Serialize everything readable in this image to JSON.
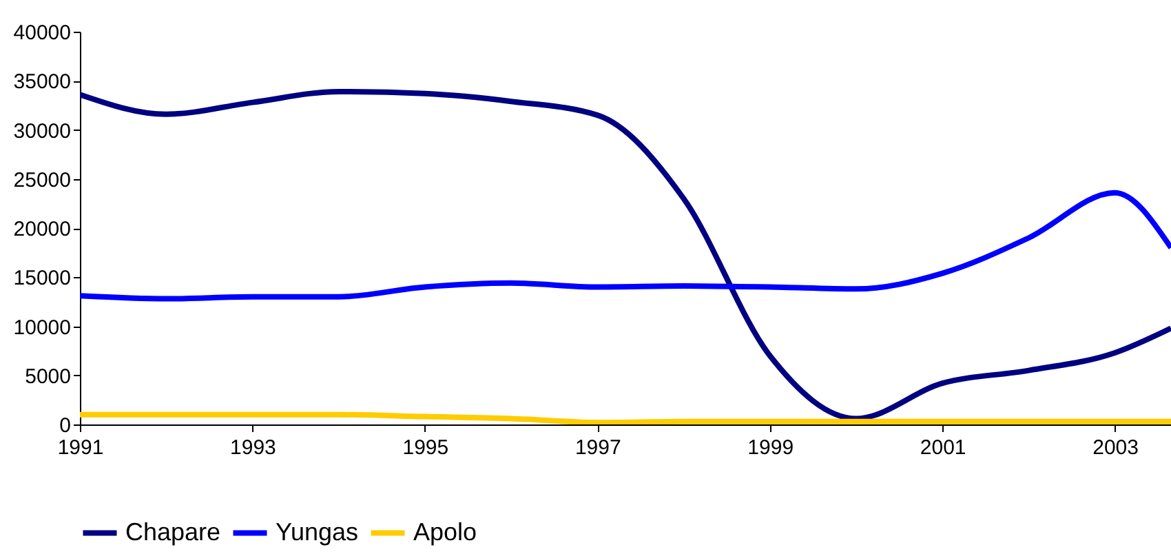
{
  "chart_data": {
    "type": "line",
    "x": [
      1991,
      1992,
      1993,
      1994,
      1995,
      1996,
      1997,
      1998,
      1999,
      2000,
      2001,
      2002,
      2003,
      2003.65
    ],
    "series": [
      {
        "name": "Chapare",
        "color": "#000080",
        "values": [
          33600,
          31600,
          32800,
          33900,
          33700,
          32900,
          31500,
          23000,
          7000,
          600,
          4200,
          5500,
          7300,
          9800
        ]
      },
      {
        "name": "Yungas",
        "color": "#0000ff",
        "values": [
          13100,
          12800,
          13000,
          13000,
          14000,
          14400,
          14000,
          14100,
          14000,
          13800,
          15400,
          19000,
          23600,
          18000
        ]
      },
      {
        "name": "Apolo",
        "color": "#ffcc00",
        "values": [
          1000,
          1000,
          1000,
          1000,
          800,
          600,
          200,
          300,
          300,
          300,
          300,
          300,
          300,
          300
        ]
      }
    ],
    "xlim": [
      1991,
      2003.65
    ],
    "xticks": [
      1991,
      1993,
      1995,
      1997,
      1999,
      2001,
      2003
    ],
    "ylim": [
      0,
      40000
    ],
    "yticks": [
      0,
      5000,
      10000,
      15000,
      20000,
      25000,
      30000,
      35000,
      40000
    ],
    "grid": false,
    "legend": "bottom",
    "marker": "none",
    "line_style": "solid"
  }
}
